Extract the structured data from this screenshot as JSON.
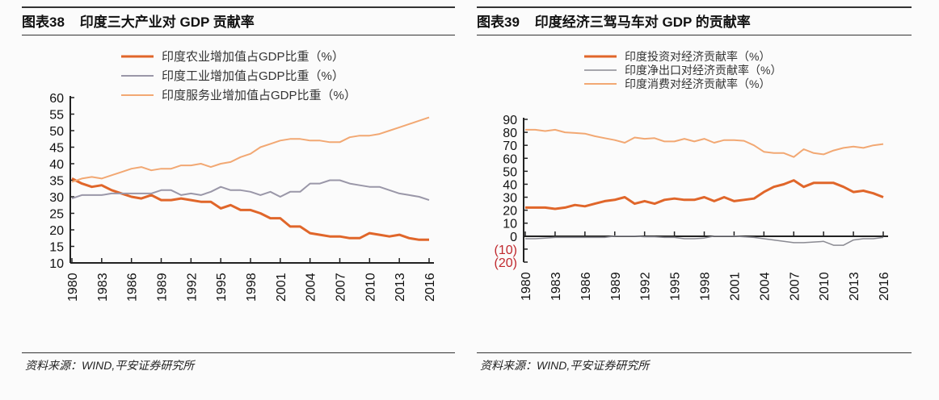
{
  "charts": [
    {
      "title": "图表38    印度三大产业对 GDP 贡献率",
      "source": "资料来源：WIND,平安证券研究所"
    },
    {
      "title": "图表39    印度经济三驾马车对 GDP 的贡献率",
      "source": "资料来源：WIND,平安证券研究所"
    }
  ],
  "chart_data": [
    {
      "type": "line",
      "title": "图表38    印度三大产业对 GDP 贡献率",
      "ylim": [
        10,
        60
      ],
      "yticks": [
        "60",
        "55",
        "50",
        "45",
        "40",
        "35",
        "30",
        "25",
        "20",
        "15",
        "10"
      ],
      "x": [
        1980,
        1981,
        1982,
        1983,
        1984,
        1985,
        1986,
        1987,
        1988,
        1989,
        1990,
        1991,
        1992,
        1993,
        1994,
        1995,
        1996,
        1997,
        1998,
        1999,
        2000,
        2001,
        2002,
        2003,
        2004,
        2005,
        2006,
        2007,
        2008,
        2009,
        2010,
        2011,
        2012,
        2013,
        2014,
        2015,
        2016
      ],
      "xticks": [
        "1980",
        "1983",
        "1986",
        "1989",
        "1992",
        "1995",
        "1998",
        "2001",
        "2004",
        "2007",
        "2010",
        "2013",
        "2016"
      ],
      "legend": "top",
      "series": [
        {
          "name": "印度农业增加值占GDP比重（%）",
          "color": "#e0662a",
          "values": [
            35.5,
            34,
            33,
            33.5,
            32,
            31,
            30,
            29.5,
            30.5,
            29,
            29,
            29.5,
            29,
            28.5,
            28.5,
            26.5,
            27.5,
            26,
            26,
            25,
            23.5,
            23.5,
            21,
            21,
            19,
            18.5,
            18,
            18,
            17.5,
            17.5,
            19,
            18.5,
            18,
            18.5,
            17.5,
            17,
            17
          ]
        },
        {
          "name": "印度工业增加值占GDP比重（%）",
          "color": "#9a97a8",
          "values": [
            29.5,
            30.5,
            30.5,
            30.5,
            31,
            31,
            31,
            31,
            31,
            32,
            32,
            30.5,
            31,
            30.5,
            31.5,
            33,
            32,
            32,
            31.5,
            30.5,
            31.5,
            30,
            31.5,
            31.5,
            34,
            34,
            35,
            35,
            34,
            33.5,
            33,
            33,
            32,
            31,
            30.5,
            30,
            29
          ]
        },
        {
          "name": "印度服务业增加值占GDP比重（%）",
          "color": "#f2a873",
          "values": [
            34.5,
            35.5,
            36,
            35.5,
            36.5,
            37.5,
            38.5,
            39,
            38,
            38.5,
            38.5,
            39.5,
            39.5,
            40,
            39,
            40,
            40.5,
            42,
            43,
            45,
            46,
            47,
            47.5,
            47.5,
            47,
            47,
            46.5,
            46.5,
            48,
            48.5,
            48.5,
            49,
            50,
            51,
            52,
            53,
            54
          ]
        }
      ]
    },
    {
      "type": "line",
      "title": "图表39    印度经济三驾马车对 GDP 的贡献率",
      "ylim": [
        -20,
        90
      ],
      "yticks": [
        "90",
        "80",
        "70",
        "60",
        "50",
        "40",
        "30",
        "20",
        "10",
        "0",
        "(10)",
        "(20)"
      ],
      "x": [
        1980,
        1981,
        1982,
        1983,
        1984,
        1985,
        1986,
        1987,
        1988,
        1989,
        1990,
        1991,
        1992,
        1993,
        1994,
        1995,
        1996,
        1997,
        1998,
        1999,
        2000,
        2001,
        2002,
        2003,
        2004,
        2005,
        2006,
        2007,
        2008,
        2009,
        2010,
        2011,
        2012,
        2013,
        2014,
        2015,
        2016
      ],
      "xticks": [
        "1980",
        "1983",
        "1986",
        "1989",
        "1992",
        "1995",
        "1998",
        "2001",
        "2004",
        "2007",
        "2010",
        "2013",
        "2016"
      ],
      "legend": "top",
      "series": [
        {
          "name": "印度投资对经济贡献率（%）",
          "color": "#e0662a",
          "values": [
            22,
            22,
            22,
            21,
            22,
            24,
            23,
            25,
            27,
            28,
            30,
            25,
            27,
            25,
            28,
            29,
            28,
            28,
            30,
            27,
            30,
            27,
            28,
            29,
            34,
            38,
            40,
            43,
            38,
            41,
            41,
            41,
            38,
            34,
            35,
            33,
            30
          ]
        },
        {
          "name": "印度净出口对经济贡献率（%）",
          "color": "#8a8a92",
          "values": [
            -2,
            -2,
            -1.5,
            -1,
            -1,
            -1,
            -1,
            -1,
            -1,
            0,
            0,
            0,
            -0.5,
            -0.5,
            -1,
            -1,
            -2,
            -2,
            -1.5,
            0,
            0,
            0,
            -0.5,
            -1,
            -2,
            -3,
            -4,
            -5,
            -5,
            -4.5,
            -4,
            -7,
            -7,
            -3,
            -2,
            -2,
            -1
          ]
        },
        {
          "name": "印度消费对经济贡献率（%）",
          "color": "#f2a873",
          "values": [
            82,
            82,
            81,
            82,
            80,
            79.5,
            79,
            77,
            75.5,
            74,
            72,
            76,
            75,
            75.5,
            73,
            73,
            75,
            73,
            75,
            72,
            74,
            74,
            73.5,
            70,
            65,
            64,
            64,
            61,
            67,
            64,
            63,
            66,
            68,
            69,
            68,
            70,
            71
          ]
        }
      ]
    }
  ]
}
